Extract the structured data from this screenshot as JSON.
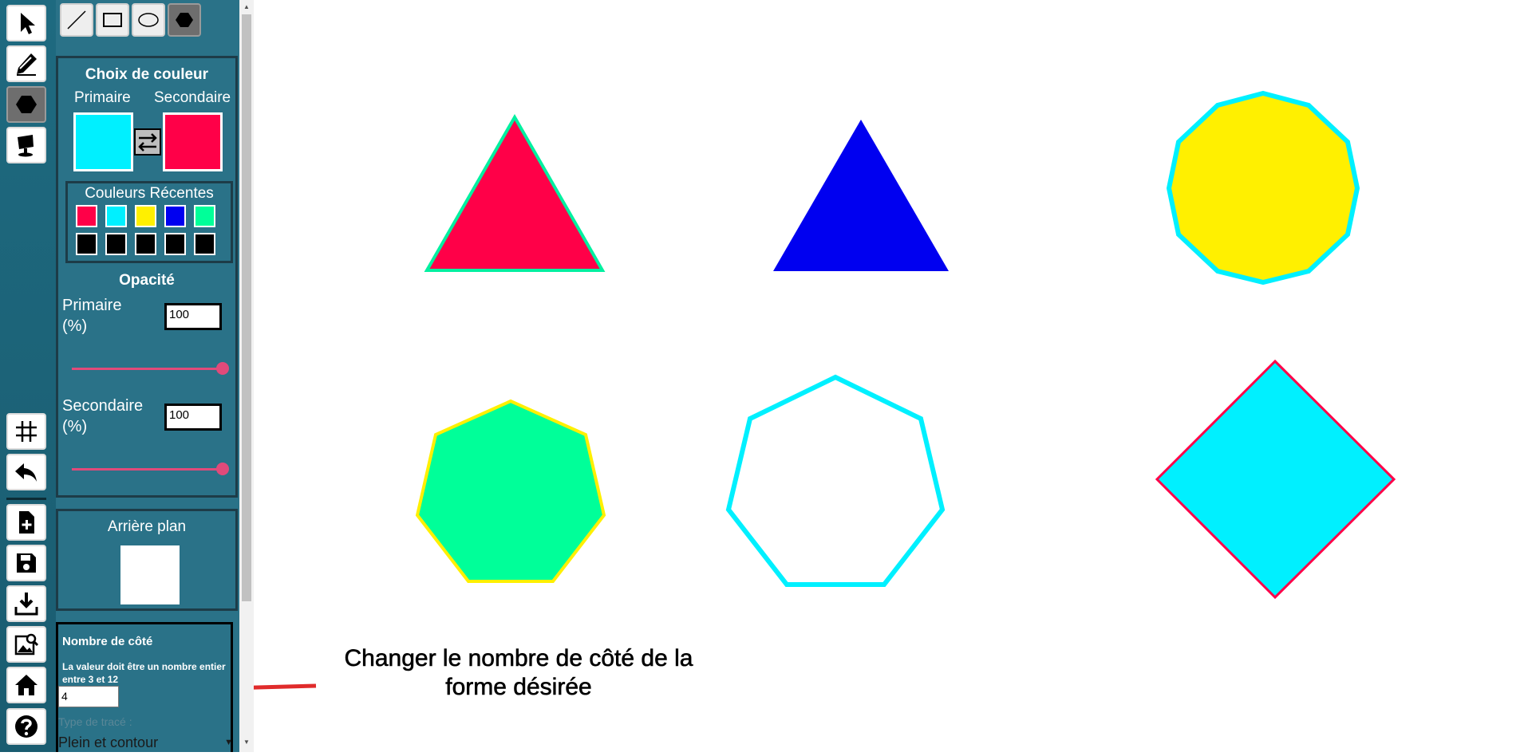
{
  "colors": {
    "primary": "#00F0FF",
    "secondary": "#FF0048",
    "background": "#FFFFFF",
    "recent_row1": [
      "#FF0048",
      "#00F0FF",
      "#FFF000",
      "#0000F0",
      "#00FF99"
    ],
    "recent_row2": [
      "#000000",
      "#000000",
      "#000000",
      "#000000",
      "#000000"
    ]
  },
  "left_toolbar": {
    "tools": [
      {
        "id": "select",
        "icon": "cursor-arrow-icon"
      },
      {
        "id": "pencil",
        "icon": "pencil-icon"
      },
      {
        "id": "shapes",
        "icon": "hexagon-icon"
      },
      {
        "id": "fill",
        "icon": "paint-bucket-icon"
      },
      {
        "id": "grid",
        "icon": "grid-icon"
      },
      {
        "id": "undo",
        "icon": "undo-icon"
      },
      {
        "id": "new",
        "icon": "new-file-icon"
      },
      {
        "id": "save",
        "icon": "save-icon"
      },
      {
        "id": "download",
        "icon": "download-icon"
      },
      {
        "id": "gallery",
        "icon": "image-search-icon"
      },
      {
        "id": "home",
        "icon": "home-icon"
      },
      {
        "id": "help",
        "icon": "help-icon"
      }
    ]
  },
  "shape_tabs": [
    {
      "id": "line",
      "icon": "line-icon"
    },
    {
      "id": "rectangle",
      "icon": "rectangle-icon"
    },
    {
      "id": "ellipse",
      "icon": "ellipse-icon"
    },
    {
      "id": "polygon",
      "icon": "hexagon-icon",
      "active": true
    }
  ],
  "color_choice": {
    "title": "Choix de couleur",
    "primary_label": "Primaire",
    "secondary_label": "Secondaire",
    "recent_title": "Couleurs Récentes"
  },
  "opacity": {
    "title": "Opacité",
    "primary_label": "Primaire (%)",
    "primary_value": "100",
    "secondary_label": "Secondaire (%)",
    "secondary_value": "100"
  },
  "background": {
    "title": "Arrière plan"
  },
  "sides": {
    "title": "Nombre de côté",
    "hint": "La valeur doit être un nombre entier entre 3 et 12",
    "value": "4",
    "trace_label": "Type de tracé :",
    "trace_value": "Plein et contour"
  },
  "annotation": {
    "text": "Changer le nombre de côté de la forme désirée"
  }
}
